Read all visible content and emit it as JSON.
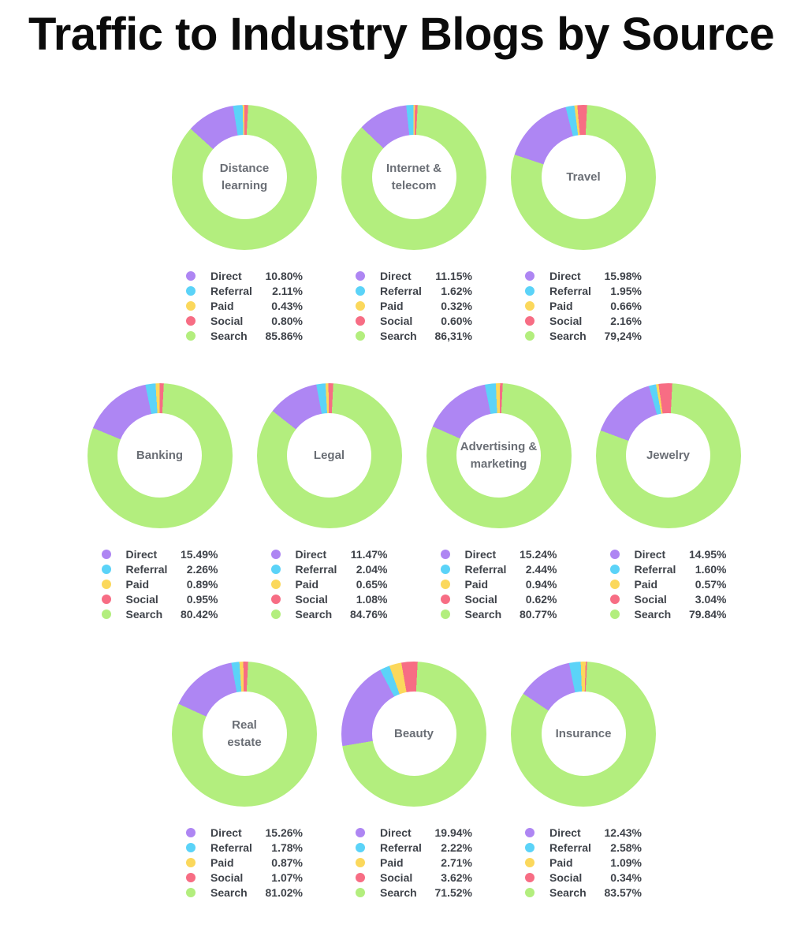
{
  "title": "Traffic to Industry Blogs by Source",
  "colors": {
    "background": "#ffffff",
    "title_text": "#0b0b0b",
    "legend_text": "#3f434a",
    "center_label_text": "#6a6e75",
    "direct": "#AE86F3",
    "referral": "#5BD3F8",
    "paid": "#FBD85C",
    "social": "#F76D84",
    "search": "#B3EE7E"
  },
  "chart_data": {
    "type": "pie",
    "variant": "donut-small-multiples",
    "unit": "%",
    "segment_draw_order_clockwise_from_top": [
      "Search",
      "Direct",
      "Referral",
      "Paid",
      "Social"
    ],
    "legend_order": [
      "Direct",
      "Referral",
      "Paid",
      "Social",
      "Search"
    ],
    "legend_position": "below-chart",
    "rows": [
      [
        {
          "name": "Distance\nlearning",
          "segments": [
            {
              "label": "Direct",
              "value": "10.80%"
            },
            {
              "label": "Referral",
              "value": "2.11%"
            },
            {
              "label": "Paid",
              "value": "0.43%"
            },
            {
              "label": "Social",
              "value": "0.80%"
            },
            {
              "label": "Search",
              "value": "85.86%"
            }
          ]
        },
        {
          "name": "Internet &\ntelecom",
          "segments": [
            {
              "label": "Direct",
              "value": "11.15%"
            },
            {
              "label": "Referral",
              "value": "1.62%"
            },
            {
              "label": "Paid",
              "value": "0.32%"
            },
            {
              "label": "Social",
              "value": "0.60%"
            },
            {
              "label": "Search",
              "value": "86,31%"
            }
          ]
        },
        {
          "name": "Travel",
          "segments": [
            {
              "label": "Direct",
              "value": "15.98%"
            },
            {
              "label": "Referral",
              "value": "1.95%"
            },
            {
              "label": "Paid",
              "value": "0.66%"
            },
            {
              "label": "Social",
              "value": "2.16%"
            },
            {
              "label": "Search",
              "value": "79,24%"
            }
          ]
        }
      ],
      [
        {
          "name": "Banking",
          "segments": [
            {
              "label": "Direct",
              "value": "15.49%"
            },
            {
              "label": "Referral",
              "value": "2.26%"
            },
            {
              "label": "Paid",
              "value": "0.89%"
            },
            {
              "label": "Social",
              "value": "0.95%"
            },
            {
              "label": "Search",
              "value": "80.42%"
            }
          ]
        },
        {
          "name": "Legal",
          "segments": [
            {
              "label": "Direct",
              "value": "11.47%"
            },
            {
              "label": "Referral",
              "value": "2.04%"
            },
            {
              "label": "Paid",
              "value": "0.65%"
            },
            {
              "label": "Social",
              "value": "1.08%"
            },
            {
              "label": "Search",
              "value": "84.76%"
            }
          ]
        },
        {
          "name": "Advertising &\nmarketing",
          "segments": [
            {
              "label": "Direct",
              "value": "15.24%"
            },
            {
              "label": "Referral",
              "value": "2.44%"
            },
            {
              "label": "Paid",
              "value": "0.94%"
            },
            {
              "label": "Social",
              "value": "0.62%"
            },
            {
              "label": "Search",
              "value": "80.77%"
            }
          ]
        },
        {
          "name": "Jewelry",
          "segments": [
            {
              "label": "Direct",
              "value": "14.95%"
            },
            {
              "label": "Referral",
              "value": "1.60%"
            },
            {
              "label": "Paid",
              "value": "0.57%"
            },
            {
              "label": "Social",
              "value": "3.04%"
            },
            {
              "label": "Search",
              "value": "79.84%"
            }
          ]
        }
      ],
      [
        {
          "name": "Real\nestate",
          "segments": [
            {
              "label": "Direct",
              "value": "15.26%"
            },
            {
              "label": "Referral",
              "value": "1.78%"
            },
            {
              "label": "Paid",
              "value": "0.87%"
            },
            {
              "label": "Social",
              "value": "1.07%"
            },
            {
              "label": "Search",
              "value": "81.02%"
            }
          ]
        },
        {
          "name": "Beauty",
          "segments": [
            {
              "label": "Direct",
              "value": "19.94%"
            },
            {
              "label": "Referral",
              "value": "2.22%"
            },
            {
              "label": "Paid",
              "value": "2.71%"
            },
            {
              "label": "Social",
              "value": "3.62%"
            },
            {
              "label": "Search",
              "value": "71.52%"
            }
          ]
        },
        {
          "name": "Insurance",
          "segments": [
            {
              "label": "Direct",
              "value": "12.43%"
            },
            {
              "label": "Referral",
              "value": "2.58%"
            },
            {
              "label": "Paid",
              "value": "1.09%"
            },
            {
              "label": "Social",
              "value": "0.34%"
            },
            {
              "label": "Search",
              "value": "83.57%"
            }
          ]
        }
      ]
    ]
  }
}
